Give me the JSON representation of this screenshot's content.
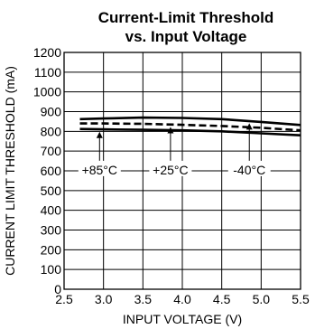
{
  "chart_data": {
    "type": "line",
    "title_line1": "Current-Limit Threshold",
    "title_line2": "vs. Input Voltage",
    "xlabel": "INPUT VOLTAGE (V)",
    "ylabel": "CURRENT LIMIT THRESHOLD (mA)",
    "xlim": [
      2.5,
      5.5
    ],
    "ylim": [
      0,
      1200
    ],
    "x_ticks": [
      2.5,
      3.0,
      3.5,
      4.0,
      4.5,
      5.0,
      5.5
    ],
    "x_tick_labels": [
      "2.5",
      "3.0",
      "3.5",
      "4.0",
      "4.5",
      "5.0",
      "5.5"
    ],
    "y_ticks": [
      0,
      100,
      200,
      300,
      400,
      500,
      600,
      700,
      800,
      900,
      1000,
      1100,
      1200
    ],
    "y_tick_labels": [
      "0",
      "100",
      "200",
      "300",
      "400",
      "500",
      "600",
      "700",
      "800",
      "900",
      "1000",
      "1100",
      "1200"
    ],
    "grid": true,
    "series": [
      {
        "name": "+85°C",
        "style": "solid",
        "x": [
          2.7,
          3.0,
          3.5,
          4.0,
          4.5,
          5.0,
          5.5
        ],
        "y": [
          812,
          810,
          808,
          805,
          800,
          790,
          780
        ]
      },
      {
        "name": "+25°C",
        "style": "dashed",
        "x": [
          2.7,
          3.0,
          3.5,
          4.0,
          4.5,
          5.0,
          5.5
        ],
        "y": [
          840,
          840,
          838,
          833,
          827,
          818,
          805
        ]
      },
      {
        "name": "-40°C",
        "style": "solid",
        "x": [
          2.7,
          3.0,
          3.5,
          4.0,
          4.5,
          5.0,
          5.5
        ],
        "y": [
          862,
          865,
          870,
          868,
          862,
          848,
          832
        ]
      }
    ],
    "annotations": [
      {
        "text": "+85°C",
        "x": 2.95,
        "y": 605,
        "arrow_to": [
          2.95,
          812
        ]
      },
      {
        "text": "+25°C",
        "x": 3.85,
        "y": 605,
        "arrow_to": [
          3.85,
          836
        ]
      },
      {
        "text": "-40°C",
        "x": 4.85,
        "y": 605,
        "arrow_to": [
          4.85,
          855
        ]
      }
    ]
  }
}
